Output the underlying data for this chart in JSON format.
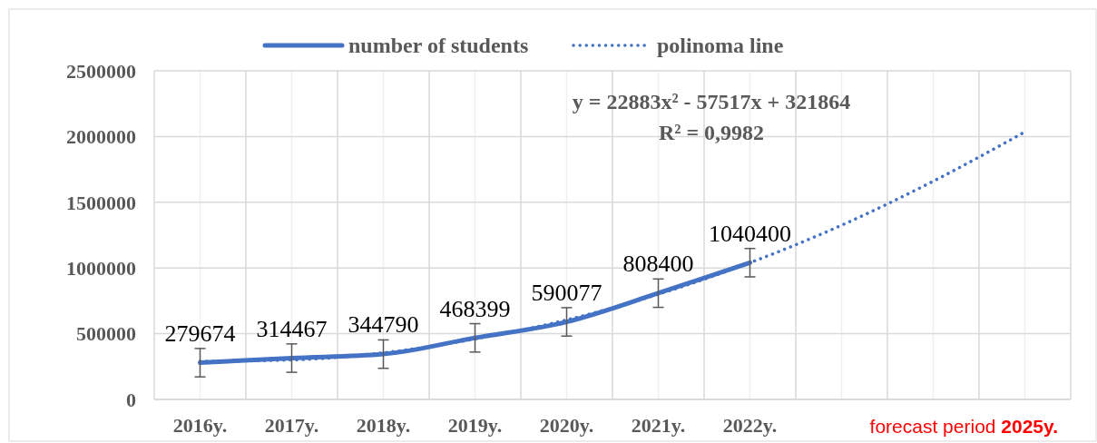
{
  "chart_data": {
    "type": "line",
    "categories": [
      "2016y.",
      "2017y.",
      "2018y.",
      "2019y.",
      "2020y.",
      "2021y.",
      "2022y.",
      null,
      null,
      null
    ],
    "series": [
      {
        "name": "number of students",
        "color": "#4472c4",
        "line_style": "solid",
        "values": [
          279674,
          314467,
          344790,
          468399,
          590077,
          808400,
          1040400,
          null,
          null,
          null
        ],
        "errors": [
          108000,
          108000,
          108000,
          108000,
          108000,
          108000,
          108000,
          null,
          null,
          null
        ],
        "value_labels": [
          "279674",
          "314467",
          "344790",
          "468399",
          "590077",
          "808400",
          "1040400",
          null,
          null,
          null
        ]
      },
      {
        "name": "polinoma line",
        "color": "#4472c4",
        "line_style": "dotted",
        "values": [
          290000,
          300000,
          355000,
          460000,
          605000,
          800000,
          1040000,
          1325000,
          1660000,
          2035000
        ]
      }
    ],
    "ylim": [
      0,
      2500000
    ],
    "yticks": [
      0,
      500000,
      1000000,
      1500000,
      2000000,
      2500000
    ],
    "grid": true,
    "legend": "top",
    "marker": "none",
    "annotations": [
      "y = 22883x² - 57517x + 321864",
      "R² = 0,9982",
      "forecast period",
      "2025y."
    ]
  }
}
